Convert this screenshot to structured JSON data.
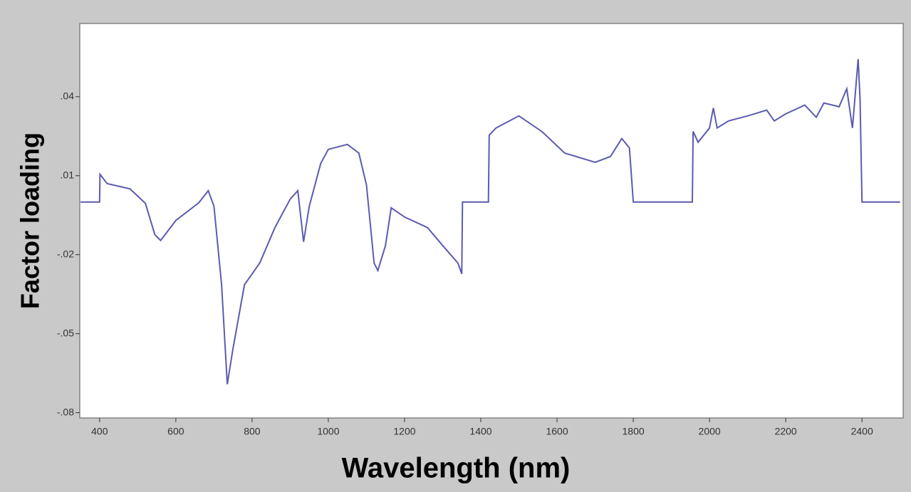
{
  "chart_data": {
    "type": "line",
    "xlabel": "Wavelength (nm)",
    "ylabel": "Factor loading",
    "x": [
      350,
      400,
      401,
      420,
      480,
      520,
      545,
      560,
      600,
      660,
      685,
      700,
      720,
      735,
      750,
      780,
      820,
      860,
      900,
      920,
      935,
      950,
      980,
      1000,
      1050,
      1080,
      1100,
      1120,
      1130,
      1150,
      1165,
      1200,
      1260,
      1300,
      1340,
      1350,
      1352,
      1420,
      1422,
      1440,
      1500,
      1560,
      1620,
      1700,
      1740,
      1770,
      1790,
      1800,
      1955,
      1957,
      1970,
      2000,
      2010,
      2020,
      2050,
      2100,
      2150,
      2170,
      2200,
      2250,
      2280,
      2300,
      2340,
      2360,
      2375,
      2390,
      2395,
      2400,
      2500
    ],
    "values": [
      0,
      0,
      0.0105,
      0.007,
      0.005,
      -0.0005,
      -0.0124,
      -0.0146,
      -0.007,
      -0.0003,
      0.0043,
      -0.0016,
      -0.0314,
      -0.0692,
      -0.0557,
      -0.0314,
      -0.0232,
      -0.0097,
      0.0011,
      0.0043,
      -0.0151,
      -0.0016,
      0.0146,
      0.02,
      0.0219,
      0.0186,
      0.0065,
      -0.0232,
      -0.026,
      -0.0165,
      -0.0022,
      -0.0057,
      -0.0097,
      -0.0165,
      -0.0232,
      -0.0273,
      0,
      0,
      0.0254,
      0.0281,
      0.0327,
      0.0268,
      0.0186,
      0.0151,
      0.0173,
      0.0241,
      0.0205,
      0,
      0,
      0.0268,
      0.0227,
      0.0281,
      0.0357,
      0.0281,
      0.0308,
      0.0327,
      0.0349,
      0.0308,
      0.0335,
      0.0368,
      0.0322,
      0.0376,
      0.0362,
      0.043,
      0.0281,
      0.0543,
      0.0389,
      0,
      0
    ],
    "color": "#5b5bb0",
    "xlim": [
      348,
      2508
    ],
    "ylim": [
      -0.082,
      0.0678
    ],
    "xticks": [
      400,
      600,
      800,
      1000,
      1200,
      1400,
      1600,
      1800,
      2000,
      2200,
      2400
    ],
    "yticks": [
      {
        "value": 0.04,
        "label": ".04"
      },
      {
        "value": 0.01,
        "label": ".01"
      },
      {
        "value": -0.02,
        "label": "-.02"
      },
      {
        "value": -0.05,
        "label": "-.05"
      },
      {
        "value": -0.08,
        "label": "-.08"
      }
    ]
  }
}
